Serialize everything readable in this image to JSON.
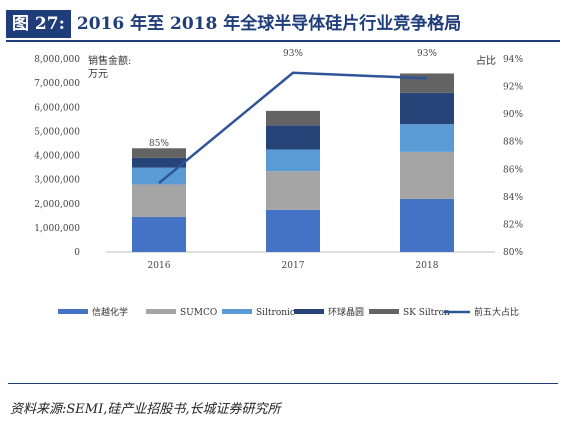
{
  "header": {
    "figure_number": "图 27:",
    "title": "2016 年至 2018 年全球半导体硅片行业竞争格局"
  },
  "source": "资料来源:SEMI,硅产业招股书,长城证券研究所",
  "chart_data": {
    "type": "bar",
    "stacked": true,
    "categories": [
      "2016",
      "2017",
      "2018"
    ],
    "left_axis": {
      "label_line1": "销售金额:",
      "label_line2": "万元",
      "ylim": [
        0,
        8000000
      ],
      "ticks": [
        "0",
        "1,000,000",
        "2,000,000",
        "3,000,000",
        "4,000,000",
        "5,000,000",
        "6,000,000",
        "7,000,000",
        "8,000,000"
      ]
    },
    "right_axis": {
      "label": "占比",
      "ylim": [
        80,
        94
      ],
      "ticks": [
        "80%",
        "82%",
        "84%",
        "86%",
        "88%",
        "90%",
        "92%",
        "94%"
      ]
    },
    "series": [
      {
        "name": "信越化学",
        "color": "#4472c4",
        "values": [
          1450000,
          1750000,
          2200000
        ]
      },
      {
        "name": "SUMCO",
        "color": "#a5a5a5",
        "values": [
          1350000,
          1600000,
          1950000
        ]
      },
      {
        "name": "Siltronic",
        "color": "#5b9bd5",
        "values": [
          700000,
          900000,
          1150000
        ]
      },
      {
        "name": "环球晶圆",
        "color": "#264478",
        "values": [
          400000,
          1000000,
          1300000
        ]
      },
      {
        "name": "SK Siltron",
        "color": "#636363",
        "values": [
          400000,
          600000,
          800000
        ]
      }
    ],
    "line_series": {
      "name": "前五大占比",
      "color": "#2e5597",
      "values": [
        85,
        93,
        92.6
      ],
      "data_labels": [
        "85%",
        "93%",
        "93%"
      ]
    },
    "grid": false,
    "legend": "bottom"
  }
}
